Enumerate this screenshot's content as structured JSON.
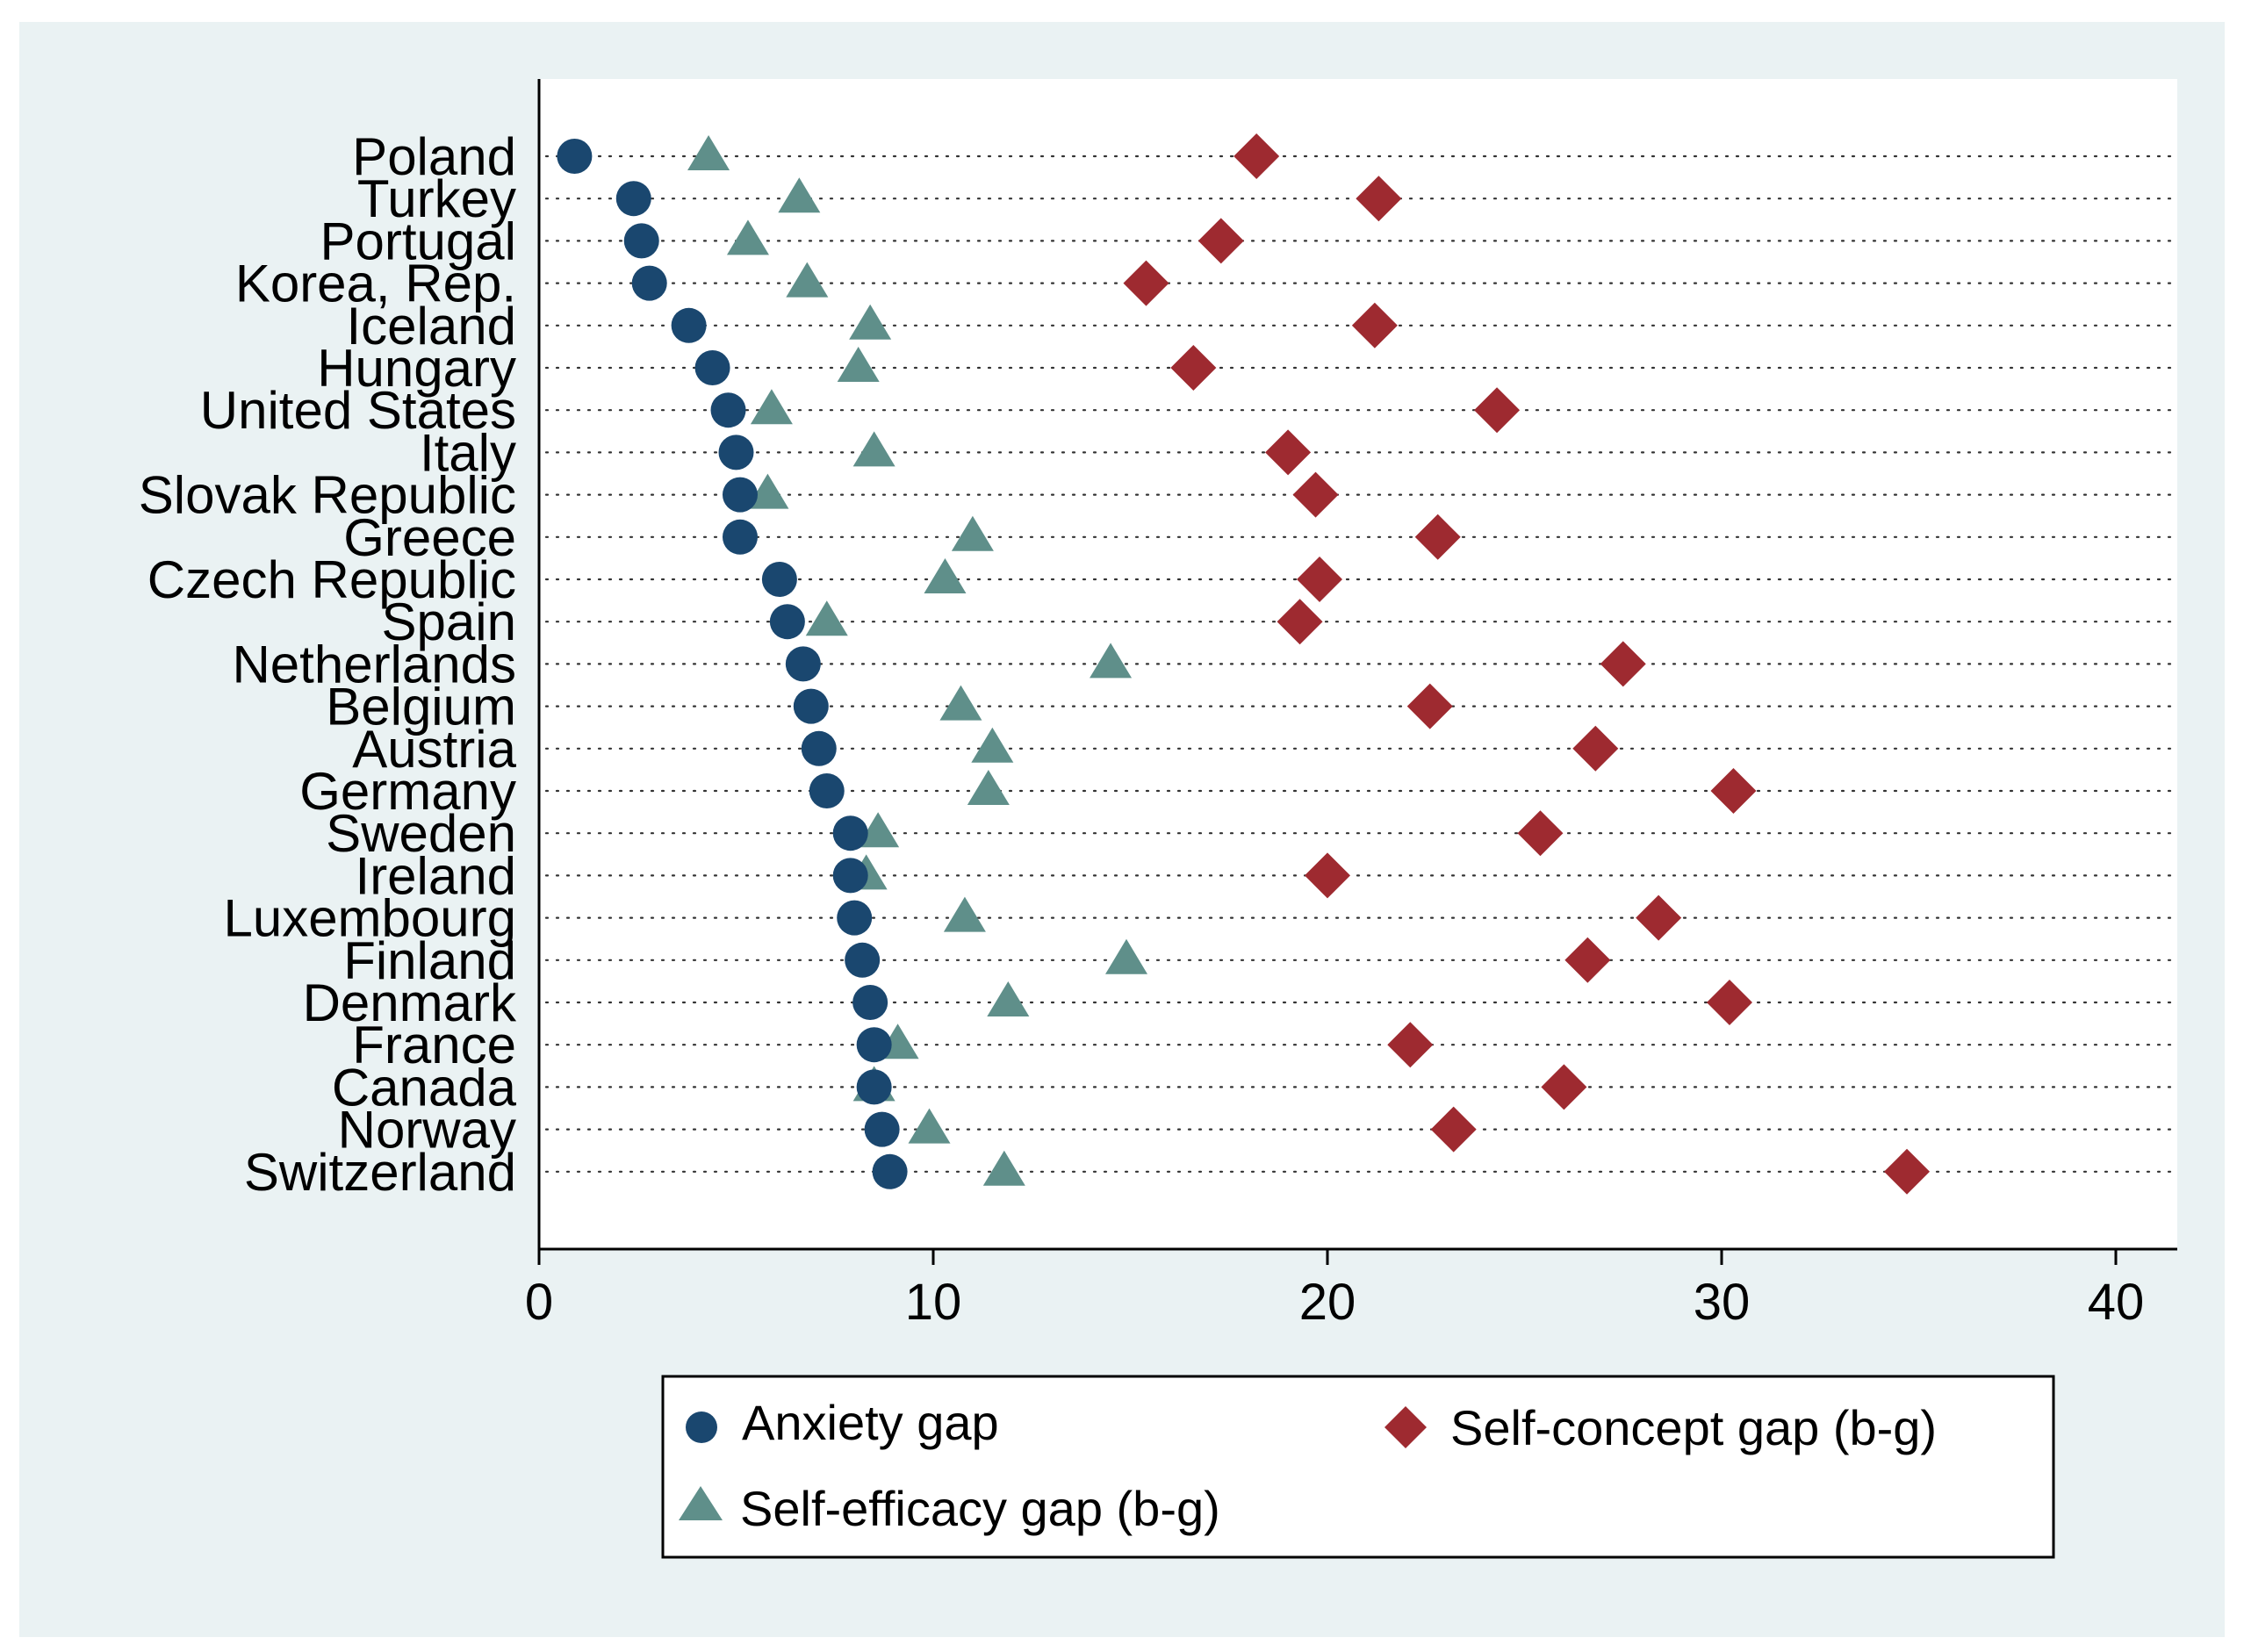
{
  "chart_data": {
    "type": "scatter",
    "title": "",
    "xlabel": "",
    "ylabel": "",
    "xlim": [
      0,
      41.5
    ],
    "x_ticks": [
      0,
      10,
      20,
      30,
      40
    ],
    "grid": "dotted horizontal lines per category",
    "categories": [
      "Poland",
      "Turkey",
      "Portugal",
      "Korea, Rep.",
      "Iceland",
      "Hungary",
      "United States",
      "Italy",
      "Slovak Republic",
      "Greece",
      "Czech Republic",
      "Spain",
      "Netherlands",
      "Belgium",
      "Austria",
      "Germany",
      "Sweden",
      "Ireland",
      "Luxembourg",
      "Finland",
      "Denmark",
      "France",
      "Canada",
      "Norway",
      "Switzerland"
    ],
    "series": [
      {
        "name": "Anxiety gap",
        "marker": "circle",
        "color": "#1a476f",
        "values": [
          0.9,
          2.4,
          2.6,
          2.8,
          3.8,
          4.4,
          4.8,
          5.0,
          5.1,
          5.1,
          6.1,
          6.3,
          6.7,
          6.9,
          7.1,
          7.3,
          7.9,
          7.9,
          8.0,
          8.2,
          8.4,
          8.5,
          8.5,
          8.7,
          8.9
        ]
      },
      {
        "name": "Self-efficacy gap (b-g)",
        "marker": "triangle",
        "color": "#5f8f8a",
        "values": [
          4.3,
          6.6,
          5.3,
          6.8,
          8.4,
          8.1,
          5.9,
          8.5,
          5.8,
          11.0,
          10.3,
          7.3,
          14.5,
          10.7,
          11.5,
          11.4,
          8.6,
          8.3,
          10.8,
          14.9,
          11.9,
          9.1,
          8.5,
          9.9,
          11.8
        ]
      },
      {
        "name": "Self-concept gap (b-g)",
        "marker": "diamond",
        "color": "#9e2a30",
        "values": [
          18.2,
          21.3,
          17.3,
          15.4,
          21.2,
          16.6,
          24.3,
          19.0,
          19.7,
          22.8,
          19.8,
          19.3,
          27.5,
          22.6,
          26.8,
          30.3,
          25.4,
          20.0,
          28.4,
          26.6,
          30.2,
          22.1,
          26.0,
          23.2,
          34.7
        ]
      }
    ],
    "legend": {
      "placement": "bottom",
      "entries": [
        "Anxiety gap",
        "Self-concept gap (b-g)",
        "Self-efficacy gap (b-g)"
      ]
    }
  }
}
